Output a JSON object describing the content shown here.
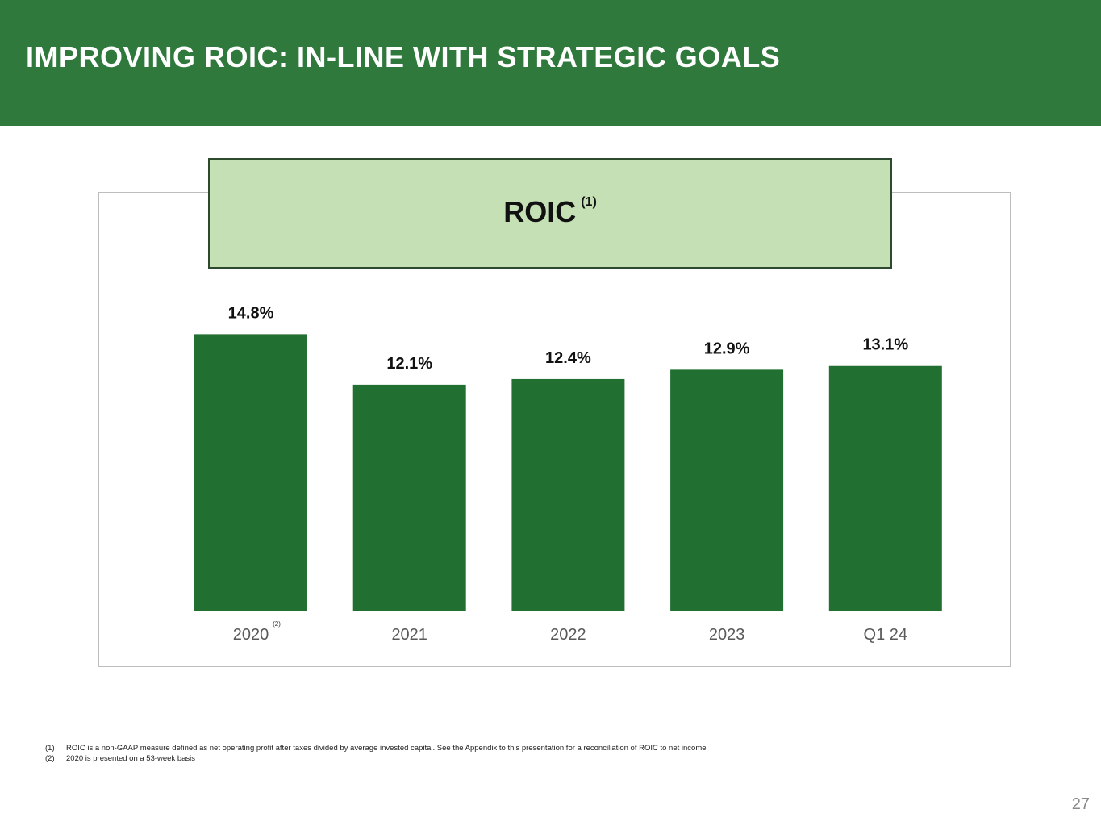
{
  "header": {
    "title": "IMPROVING ROIC: IN-LINE WITH STRATEGIC GOALS"
  },
  "colors": {
    "header_bg": "#30793d",
    "bar": "#217031",
    "title_box_bg": "#c5e0b4"
  },
  "chart_data": {
    "type": "bar",
    "title": "ROIC",
    "title_superscript": "(1)",
    "categories": [
      "2020",
      "2021",
      "2022",
      "2023",
      "Q1 24"
    ],
    "category_superscripts": [
      "(2)",
      "",
      "",
      "",
      ""
    ],
    "values": [
      14.8,
      12.1,
      12.4,
      12.9,
      13.1
    ],
    "data_labels": [
      "14.8%",
      "12.1%",
      "12.4%",
      "12.9%",
      "13.1%"
    ],
    "ylim": [
      0,
      20
    ],
    "grid": false,
    "legend": "none"
  },
  "footnotes": [
    {
      "num": "(1)",
      "text": "ROIC is a non-GAAP measure defined as net operating profit after taxes divided by average invested capital. See the Appendix to this presentation for a reconciliation of ROIC to net income"
    },
    {
      "num": "(2)",
      "text": "2020 is presented on a 53-week basis"
    }
  ],
  "page_number": "27"
}
